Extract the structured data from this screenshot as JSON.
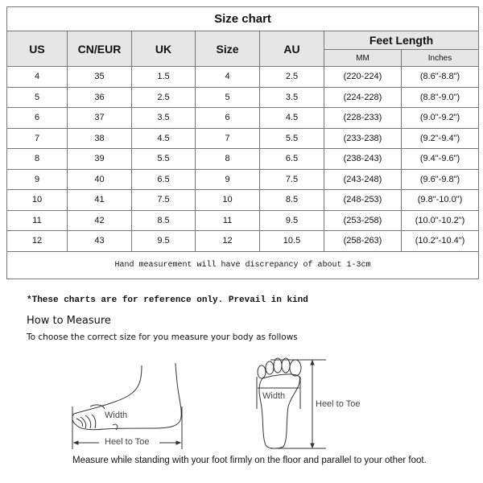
{
  "table": {
    "title": "Size chart",
    "headers": [
      "US",
      "CN/EUR",
      "UK",
      "Size",
      "AU"
    ],
    "group_header": "Feet Length",
    "sub_headers": [
      "MM",
      "Inches"
    ],
    "rows": [
      [
        "4",
        "35",
        "1.5",
        "4",
        "2.5",
        "(220-224)",
        "(8.6\"-8.8\")"
      ],
      [
        "5",
        "36",
        "2.5",
        "5",
        "3.5",
        "(224-228)",
        "(8.8\"-9.0\")"
      ],
      [
        "6",
        "37",
        "3.5",
        "6",
        "4.5",
        "(228-233)",
        "(9.0\"-9.2\")"
      ],
      [
        "7",
        "38",
        "4.5",
        "7",
        "5.5",
        "(233-238)",
        "(9.2\"-9.4\")"
      ],
      [
        "8",
        "39",
        "5.5",
        "8",
        "6.5",
        "(238-243)",
        "(9.4\"-9.6\")"
      ],
      [
        "9",
        "40",
        "6.5",
        "9",
        "7.5",
        "(243-248)",
        "(9.6\"-9.8\")"
      ],
      [
        "10",
        "41",
        "7.5",
        "10",
        "8.5",
        "(248-253)",
        "(9.8\"-10.0\")"
      ],
      [
        "11",
        "42",
        "8.5",
        "11",
        "9.5",
        "(253-258)",
        "(10.0\"-10.2\")"
      ],
      [
        "12",
        "43",
        "9.5",
        "12",
        "10.5",
        "(258-263)",
        "(10.2\"-10.4\")"
      ]
    ],
    "footer": "Hand measurement will have discrepancy of about 1-3cm"
  },
  "note": "*These charts are for reference only. Prevail in kind",
  "how_to": {
    "title": "How to Measure",
    "subtitle": "To choose the correct size for you measure your body as follows",
    "side_width_label": "Width",
    "side_length_label": "Heel to Toe",
    "sole_width_label": "Width",
    "sole_length_label": "Heel to Toe",
    "instruction": "Measure while standing with your foot firmly on the floor and parallel to your other foot."
  }
}
